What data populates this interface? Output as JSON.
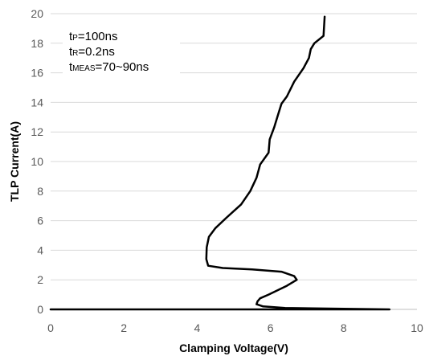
{
  "chart_data": {
    "type": "line",
    "xlabel": "Clamping Voltage(V)",
    "ylabel": "TLP Current(A)",
    "xlim": [
      0,
      10
    ],
    "ylim": [
      0,
      20
    ],
    "x_ticks": [
      "0",
      "2",
      "4",
      "6",
      "8",
      "10"
    ],
    "y_ticks": [
      "0",
      "2",
      "4",
      "6",
      "8",
      "10",
      "12",
      "14",
      "16",
      "18",
      "20"
    ],
    "grid": "horizontal",
    "annotations": [
      {
        "prefix": "t",
        "sub": "P",
        "rest": "=100ns"
      },
      {
        "prefix": "t",
        "sub": "R",
        "rest": "=0.2ns"
      },
      {
        "prefix": "t",
        "sub": "MEAS",
        "rest": "=70~90ns"
      }
    ],
    "series": [
      {
        "color": "#000000",
        "x": [
          0.0,
          9.25,
          6.4,
          5.8,
          5.62,
          5.65,
          5.72,
          5.95,
          6.2,
          6.45,
          6.72,
          6.65,
          6.3,
          5.5,
          4.7,
          4.3,
          4.25,
          4.26,
          4.32,
          4.5,
          4.8,
          5.2,
          5.45,
          5.62,
          5.72,
          5.95,
          5.98,
          6.1,
          6.2,
          6.3,
          6.45,
          6.65,
          6.9,
          7.05,
          7.1,
          7.2,
          7.45,
          7.48
        ],
        "y": [
          0.0,
          0.0,
          0.1,
          0.2,
          0.35,
          0.55,
          0.75,
          1.0,
          1.3,
          1.6,
          2.0,
          2.25,
          2.55,
          2.7,
          2.8,
          2.95,
          3.4,
          4.2,
          4.9,
          5.5,
          6.2,
          7.1,
          8.0,
          8.9,
          9.8,
          10.6,
          11.5,
          12.3,
          13.1,
          13.9,
          14.4,
          15.4,
          16.3,
          17.0,
          17.6,
          18.0,
          18.5,
          19.8
        ]
      }
    ]
  }
}
